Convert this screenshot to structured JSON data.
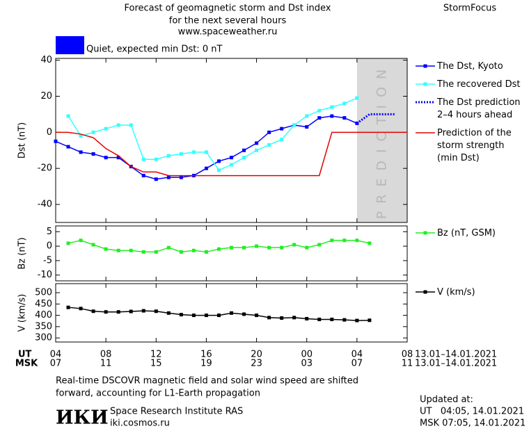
{
  "header": {
    "title_lines": [
      "Forecast of geomagnetic storm and Dst index",
      "for the next several hours"
    ],
    "url": "www.spaceweather.ru",
    "brand": "StormFocus"
  },
  "status": {
    "color": "#0000ff",
    "text": "Quiet, expected min Dst: 0 nT"
  },
  "chart_data": [
    {
      "type": "line",
      "ylabel": "Dst (nT)",
      "ylim": [
        -50,
        41
      ],
      "yticks": [
        -40,
        -20,
        0,
        20,
        40
      ],
      "xlim": [
        0,
        28
      ],
      "xticks": [
        0,
        4,
        8,
        12,
        16,
        20,
        24,
        28
      ],
      "x": [
        0,
        1,
        2,
        3,
        4,
        5,
        6,
        7,
        8,
        9,
        10,
        11,
        12,
        13,
        14,
        15,
        16,
        17,
        18,
        19,
        20,
        21,
        22,
        23,
        24,
        25,
        26,
        27,
        28
      ],
      "prediction_region": {
        "from": 24,
        "to": 28,
        "label": "PREDICTION",
        "color": "#d9d9d9"
      },
      "series": [
        {
          "name": "The Dst, Kyoto",
          "color": "#0000ff",
          "marker": true,
          "dotted": false,
          "values": [
            -5,
            -8,
            -11,
            -12,
            -14,
            -14,
            -19,
            -24,
            -26,
            -25,
            -25,
            -24,
            -20,
            -16,
            -14,
            -10,
            -6,
            0,
            2,
            4,
            3,
            8,
            9,
            8,
            5,
            null,
            null,
            null,
            null
          ]
        },
        {
          "name": "The recovered Dst",
          "color": "#33ffff",
          "marker": true,
          "dotted": false,
          "values": [
            null,
            9,
            -2,
            0,
            2,
            4,
            4,
            -15,
            -15,
            -13,
            -12,
            -11,
            -11,
            -21,
            -18,
            -14,
            -10,
            -7,
            -4,
            4,
            9,
            12,
            14,
            16,
            19,
            null,
            null,
            null,
            null
          ]
        },
        {
          "name": "The Dst prediction\n2–4 hours ahead",
          "color": "#0000ff",
          "marker": false,
          "dotted": true,
          "values": [
            null,
            null,
            null,
            null,
            null,
            null,
            null,
            null,
            null,
            null,
            null,
            null,
            null,
            null,
            null,
            null,
            null,
            null,
            null,
            null,
            null,
            null,
            null,
            null,
            5,
            10,
            10,
            10,
            null
          ]
        },
        {
          "name": "Prediction of the\nstorm strength\n(min Dst)",
          "color": "#e00000",
          "marker": false,
          "dotted": false,
          "values": [
            0,
            0,
            -1,
            -3,
            -9,
            -13,
            -19,
            -22,
            -22,
            -24,
            -24,
            -24,
            -24,
            -24,
            -24,
            -24,
            -24,
            -24,
            -24,
            -24,
            -24,
            -24,
            0,
            0,
            0,
            0,
            0,
            0,
            0
          ]
        }
      ]
    },
    {
      "type": "line",
      "ylabel": "Bz (nT)",
      "ylim": [
        -12,
        7
      ],
      "yticks": [
        -10,
        -5,
        0,
        5
      ],
      "xlim": [
        0,
        28
      ],
      "xticks": [
        0,
        4,
        8,
        12,
        16,
        20,
        24,
        28
      ],
      "x": [
        0,
        1,
        2,
        3,
        4,
        5,
        6,
        7,
        8,
        9,
        10,
        11,
        12,
        13,
        14,
        15,
        16,
        17,
        18,
        19,
        20,
        21,
        22,
        23,
        24,
        25,
        26,
        27,
        28
      ],
      "series": [
        {
          "name": "Bz (nT, GSM)",
          "color": "#22ee22",
          "marker": true,
          "dotted": false,
          "values": [
            null,
            1,
            2,
            0.5,
            -1,
            -1.5,
            -1.5,
            -2,
            -2,
            -0.5,
            -2,
            -1.5,
            -2,
            -1,
            -0.5,
            -0.5,
            0,
            -0.5,
            -0.5,
            0.5,
            -0.5,
            0.5,
            2,
            2,
            2,
            1,
            null,
            null,
            null
          ]
        }
      ]
    },
    {
      "type": "line",
      "ylabel": "V (km/s)",
      "ylim": [
        282,
        540
      ],
      "yticks": [
        300,
        350,
        400,
        450,
        500
      ],
      "xlim": [
        0,
        28
      ],
      "xticks": [
        {
          "value": 0,
          "label": "04"
        },
        {
          "value": 4,
          "label": "08"
        },
        {
          "value": 8,
          "label": "12"
        },
        {
          "value": 12,
          "label": "16"
        },
        {
          "value": 16,
          "label": "20"
        },
        {
          "value": 20,
          "label": "00"
        },
        {
          "value": 24,
          "label": "04"
        },
        {
          "value": 28,
          "label": "08"
        }
      ],
      "x2ticks": [
        {
          "value": 0,
          "label": "07"
        },
        {
          "value": 4,
          "label": "11"
        },
        {
          "value": 8,
          "label": "15"
        },
        {
          "value": 12,
          "label": "19"
        },
        {
          "value": 16,
          "label": "23"
        },
        {
          "value": 20,
          "label": "03"
        },
        {
          "value": 24,
          "label": "07"
        },
        {
          "value": 28,
          "label": "11"
        }
      ],
      "xlabel": "UT",
      "x2label": "MSK",
      "xdate": "13.01–14.01.2021",
      "x2date": "13.01–14.01.2021",
      "x": [
        0,
        1,
        2,
        3,
        4,
        5,
        6,
        7,
        8,
        9,
        10,
        11,
        12,
        13,
        14,
        15,
        16,
        17,
        18,
        19,
        20,
        21,
        22,
        23,
        24,
        25,
        26,
        27,
        28
      ],
      "series": [
        {
          "name": "V (km/s)",
          "color": "#000000",
          "marker": true,
          "dotted": false,
          "values": [
            null,
            435,
            430,
            418,
            415,
            415,
            417,
            420,
            418,
            410,
            403,
            400,
            400,
            400,
            410,
            405,
            400,
            390,
            388,
            390,
            385,
            382,
            382,
            380,
            377,
            378,
            null,
            null,
            null
          ]
        }
      ]
    }
  ],
  "footer": {
    "note_lines": [
      "Real-time DSCOVR magnetic field and solar wind speed are shifted",
      "forward, accounting for L1-Earth propagation"
    ],
    "logo": "ИКИ",
    "institute": "Space Research Institute RAS",
    "site": "iki.cosmos.ru",
    "updated_title": "Updated at:",
    "updated_lines": [
      "UT   04:05, 14.01.2021",
      "MSK 07:05, 14.01.2021"
    ]
  }
}
